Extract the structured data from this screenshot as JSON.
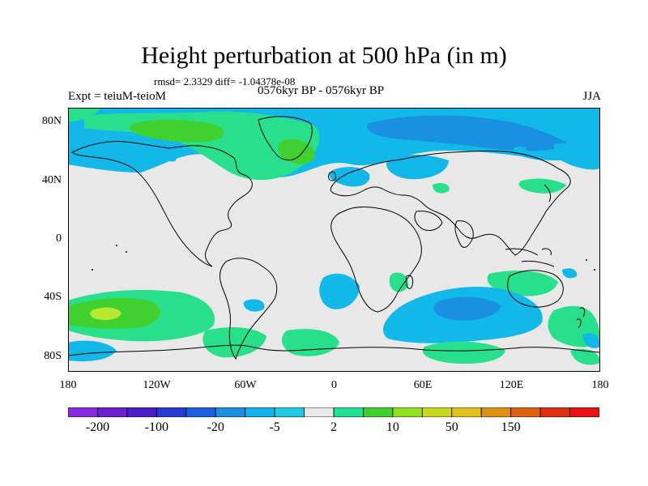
{
  "header": {
    "title": "Height perturbation at 500 hPa (in m)",
    "stats": "rmsd= 2.3329 diff= -1.04378e-08",
    "left": "Expt = teiuM-teioM",
    "center": "0576kyr BP - 0576kyr BP",
    "right": "JJA"
  },
  "axes": {
    "lat_ticks": [
      {
        "value": 80,
        "label": "80N"
      },
      {
        "value": 40,
        "label": "40N"
      },
      {
        "value": 0,
        "label": "0"
      },
      {
        "value": -40,
        "label": "40S"
      },
      {
        "value": -80,
        "label": "80S"
      }
    ],
    "lon_ticks": [
      {
        "value": -180,
        "label": "180"
      },
      {
        "value": -120,
        "label": "120W"
      },
      {
        "value": -60,
        "label": "60W"
      },
      {
        "value": 0,
        "label": "0"
      },
      {
        "value": 60,
        "label": "60E"
      },
      {
        "value": 120,
        "label": "120E"
      },
      {
        "value": 180,
        "label": "180"
      }
    ]
  },
  "legend": {
    "colors": [
      "#8a2be2",
      "#6a1fd0",
      "#4b1cc9",
      "#2a3ad6",
      "#1860e0",
      "#1a90e0",
      "#10b0e8",
      "#20c8e8",
      "#e8e8e8",
      "#20e090",
      "#40d030",
      "#90e020",
      "#c8d820",
      "#e0c020",
      "#e09010",
      "#e06010",
      "#e03010",
      "#e81010"
    ],
    "labels": [
      {
        "index": 1,
        "text": "-200"
      },
      {
        "index": 3,
        "text": "-100"
      },
      {
        "index": 5,
        "text": "-20"
      },
      {
        "index": 7,
        "text": "-5"
      },
      {
        "index": 9,
        "text": "2"
      },
      {
        "index": 11,
        "text": "10"
      },
      {
        "index": 13,
        "text": "50"
      },
      {
        "index": 15,
        "text": "150"
      }
    ]
  },
  "map_colors": {
    "background": "#e8e8e8",
    "light_green": "#28e08c",
    "green": "#40d030",
    "yellow_green": "#b8e830",
    "light_blue": "#12b8e8",
    "blue": "#1a90e0"
  }
}
